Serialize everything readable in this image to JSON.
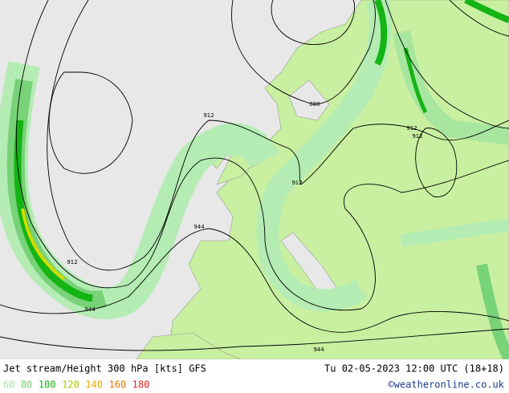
{
  "map": {
    "contour_labels": [
      "880",
      "912",
      "912",
      "912",
      "912",
      "912",
      "944",
      "944",
      "944"
    ]
  },
  "footer": {
    "title": "Jet stream/Height 300 hPa [kts] GFS",
    "datetime": "Tu 02-05-2023 12:00 UTC (18+18)",
    "legend": [
      {
        "label": "60",
        "color": "#a8e6a0"
      },
      {
        "label": "80",
        "color": "#78d278"
      },
      {
        "label": "100",
        "color": "#14b414"
      },
      {
        "label": "120",
        "color": "#b4c800"
      },
      {
        "label": "140",
        "color": "#e6aa00"
      },
      {
        "label": "160",
        "color": "#e67800"
      },
      {
        "label": "180",
        "color": "#e61e1e"
      }
    ],
    "credit": "©weatheronline.co.uk"
  }
}
